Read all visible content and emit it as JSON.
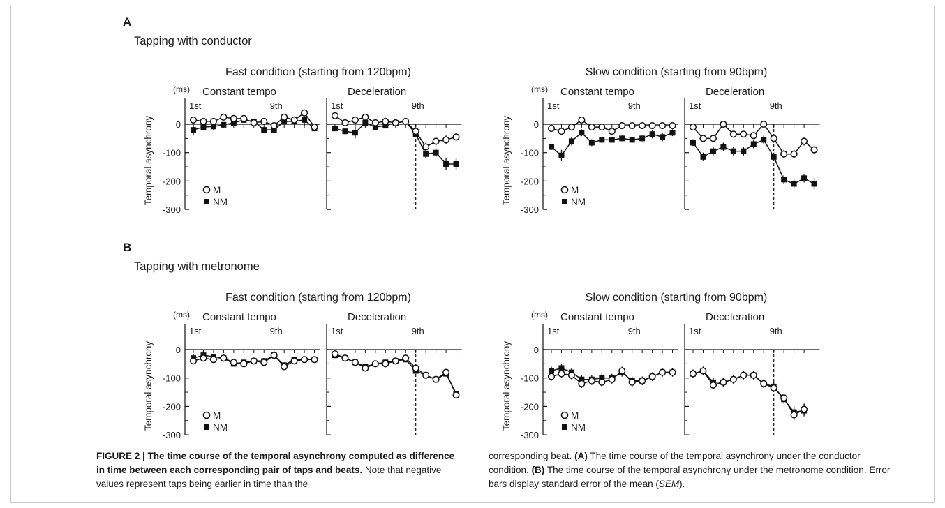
{
  "figure_label": "FIGURE 2 |",
  "figure_title": "The time course of the temporal asynchrony computed as difference in time between each corresponding pair of taps and beats",
  "caption_note_left": "Note that negative values represent taps being earlier in time than the",
  "caption_note_right_1": "corresponding beat.",
  "caption_a_label": "(A)",
  "caption_a_text": "The time course of the temporal asynchrony under the conductor condition.",
  "caption_b_label": "(B)",
  "caption_b_text": "The time course of the temporal asynchrony under the metronome condition. Error bars display standard error of the mean (",
  "caption_sem": "SEM",
  "caption_end": ").",
  "chart_data": {
    "type": "line",
    "ylabel": "Temporal asynchrony",
    "yunit": "(ms)",
    "ylim": [
      -300,
      0
    ],
    "yticks": [
      0,
      -100,
      -200,
      -300
    ],
    "x_annotations": [
      "1st",
      "9th"
    ],
    "legend": [
      "M",
      "NM"
    ],
    "panels": [
      {
        "label": "A",
        "title": "Tapping with conductor",
        "conditions": [
          {
            "title": "Fast condition (starting from 120bpm)",
            "subplots": [
              {
                "title": "Constant tempo",
                "series": [
                  {
                    "name": "M",
                    "values": [
                      15,
                      10,
                      10,
                      25,
                      20,
                      20,
                      5,
                      10,
                      -5,
                      25,
                      15,
                      40,
                      -10
                    ],
                    "err": [
                      5,
                      5,
                      5,
                      5,
                      5,
                      5,
                      5,
                      5,
                      5,
                      5,
                      5,
                      5,
                      5
                    ]
                  },
                  {
                    "name": "NM",
                    "values": [
                      -20,
                      -10,
                      -8,
                      -2,
                      5,
                      15,
                      10,
                      -20,
                      -20,
                      10,
                      10,
                      15,
                      -15
                    ],
                    "err": [
                      20,
                      12,
                      12,
                      8,
                      8,
                      8,
                      8,
                      10,
                      10,
                      10,
                      8,
                      20,
                      8
                    ]
                  }
                ]
              },
              {
                "title": "Deceleration",
                "onset": 9,
                "series": [
                  {
                    "name": "M",
                    "values": [
                      30,
                      5,
                      15,
                      25,
                      5,
                      10,
                      5,
                      10,
                      -25,
                      -80,
                      -60,
                      -55,
                      -45
                    ],
                    "err": [
                      5,
                      5,
                      5,
                      5,
                      5,
                      5,
                      5,
                      5,
                      10,
                      15,
                      15,
                      15,
                      15
                    ]
                  },
                  {
                    "name": "NM",
                    "values": [
                      -15,
                      -25,
                      -30,
                      5,
                      -10,
                      -5,
                      5,
                      10,
                      -35,
                      -105,
                      -100,
                      -140,
                      -140
                    ],
                    "err": [
                      8,
                      12,
                      20,
                      10,
                      10,
                      10,
                      10,
                      10,
                      12,
                      15,
                      15,
                      20,
                      20
                    ]
                  }
                ]
              }
            ]
          },
          {
            "title": "Slow condition (starting from 90bpm)",
            "subplots": [
              {
                "title": "Constant tempo",
                "series": [
                  {
                    "name": "M",
                    "values": [
                      -15,
                      -25,
                      -10,
                      15,
                      -10,
                      -10,
                      -25,
                      -5,
                      -5,
                      -5,
                      -5,
                      -5,
                      -5
                    ],
                    "err": [
                      10,
                      12,
                      10,
                      10,
                      10,
                      10,
                      10,
                      10,
                      8,
                      10,
                      10,
                      10,
                      10
                    ]
                  },
                  {
                    "name": "NM",
                    "values": [
                      -80,
                      -110,
                      -60,
                      -30,
                      -65,
                      -55,
                      -55,
                      -50,
                      -55,
                      -50,
                      -35,
                      -45,
                      -30
                    ],
                    "err": [
                      10,
                      20,
                      15,
                      12,
                      12,
                      10,
                      10,
                      10,
                      10,
                      10,
                      15,
                      15,
                      12
                    ]
                  }
                ]
              },
              {
                "title": "Deceleration",
                "onset": 9,
                "series": [
                  {
                    "name": "M",
                    "values": [
                      -10,
                      -50,
                      -50,
                      0,
                      -35,
                      -35,
                      -40,
                      0,
                      -50,
                      -105,
                      -105,
                      -60,
                      -90
                    ],
                    "err": [
                      10,
                      10,
                      10,
                      10,
                      10,
                      10,
                      10,
                      10,
                      15,
                      15,
                      15,
                      15,
                      15
                    ]
                  },
                  {
                    "name": "NM",
                    "values": [
                      -65,
                      -115,
                      -95,
                      -80,
                      -95,
                      -95,
                      -70,
                      -55,
                      -115,
                      -195,
                      -210,
                      -190,
                      -210
                    ],
                    "err": [
                      12,
                      15,
                      15,
                      15,
                      15,
                      15,
                      15,
                      15,
                      15,
                      15,
                      15,
                      15,
                      20
                    ]
                  }
                ]
              }
            ]
          }
        ]
      },
      {
        "label": "B",
        "title": "Tapping with metronome",
        "conditions": [
          {
            "title": "Fast condition (starting from 120bpm)",
            "subplots": [
              {
                "title": "Constant tempo",
                "series": [
                  {
                    "name": "M",
                    "values": [
                      -40,
                      -30,
                      -35,
                      -30,
                      -45,
                      -50,
                      -40,
                      -45,
                      -20,
                      -60,
                      -40,
                      -35,
                      -35
                    ],
                    "err": [
                      10,
                      10,
                      10,
                      10,
                      10,
                      10,
                      10,
                      10,
                      10,
                      10,
                      10,
                      10,
                      10
                    ]
                  },
                  {
                    "name": "NM",
                    "values": [
                      -30,
                      -20,
                      -25,
                      -30,
                      -50,
                      -45,
                      -40,
                      -40,
                      -20,
                      -55,
                      -35,
                      -35,
                      -35
                    ],
                    "err": [
                      15,
                      15,
                      10,
                      10,
                      10,
                      10,
                      10,
                      10,
                      10,
                      10,
                      10,
                      10,
                      10
                    ]
                  }
                ]
              },
              {
                "title": "Deceleration",
                "onset": 9,
                "series": [
                  {
                    "name": "M",
                    "values": [
                      -15,
                      -30,
                      -45,
                      -65,
                      -50,
                      -50,
                      -40,
                      -30,
                      -65,
                      -90,
                      -105,
                      -80,
                      -160
                    ],
                    "err": [
                      10,
                      10,
                      10,
                      10,
                      10,
                      10,
                      10,
                      10,
                      10,
                      10,
                      10,
                      10,
                      10
                    ]
                  },
                  {
                    "name": "NM",
                    "values": [
                      -20,
                      -30,
                      -45,
                      -60,
                      -50,
                      -45,
                      -40,
                      -35,
                      -75,
                      -90,
                      -105,
                      -85,
                      -155
                    ],
                    "err": [
                      10,
                      10,
                      10,
                      10,
                      10,
                      10,
                      10,
                      10,
                      10,
                      10,
                      10,
                      10,
                      10
                    ]
                  }
                ]
              }
            ]
          },
          {
            "title": "Slow condition (starting from 90bpm)",
            "subplots": [
              {
                "title": "Constant tempo",
                "series": [
                  {
                    "name": "M",
                    "values": [
                      -95,
                      -85,
                      -90,
                      -120,
                      -110,
                      -115,
                      -105,
                      -75,
                      -115,
                      -110,
                      -95,
                      -80,
                      -80
                    ],
                    "err": [
                      15,
                      15,
                      15,
                      15,
                      15,
                      15,
                      15,
                      15,
                      15,
                      15,
                      15,
                      15,
                      15
                    ]
                  },
                  {
                    "name": "NM",
                    "values": [
                      -75,
                      -65,
                      -80,
                      -105,
                      -105,
                      -100,
                      -100,
                      -80,
                      -110,
                      -110,
                      -95,
                      -80,
                      -80
                    ],
                    "err": [
                      15,
                      15,
                      15,
                      15,
                      15,
                      15,
                      15,
                      15,
                      15,
                      15,
                      15,
                      15,
                      15
                    ]
                  }
                ]
              },
              {
                "title": "Deceleration",
                "onset": 9,
                "series": [
                  {
                    "name": "M",
                    "values": [
                      -85,
                      -75,
                      -125,
                      -115,
                      -105,
                      -90,
                      -90,
                      -120,
                      -135,
                      -170,
                      -230,
                      -210
                    ],
                    "err": [
                      15,
                      15,
                      15,
                      15,
                      15,
                      15,
                      15,
                      15,
                      15,
                      15,
                      20,
                      20
                    ]
                  },
                  {
                    "name": "NM",
                    "values": [
                      -85,
                      -75,
                      -115,
                      -115,
                      -105,
                      -90,
                      -90,
                      -120,
                      -130,
                      -175,
                      -220,
                      -215
                    ],
                    "err": [
                      15,
                      15,
                      15,
                      15,
                      15,
                      15,
                      15,
                      15,
                      15,
                      15,
                      20,
                      20
                    ]
                  }
                ]
              }
            ]
          }
        ]
      }
    ]
  }
}
